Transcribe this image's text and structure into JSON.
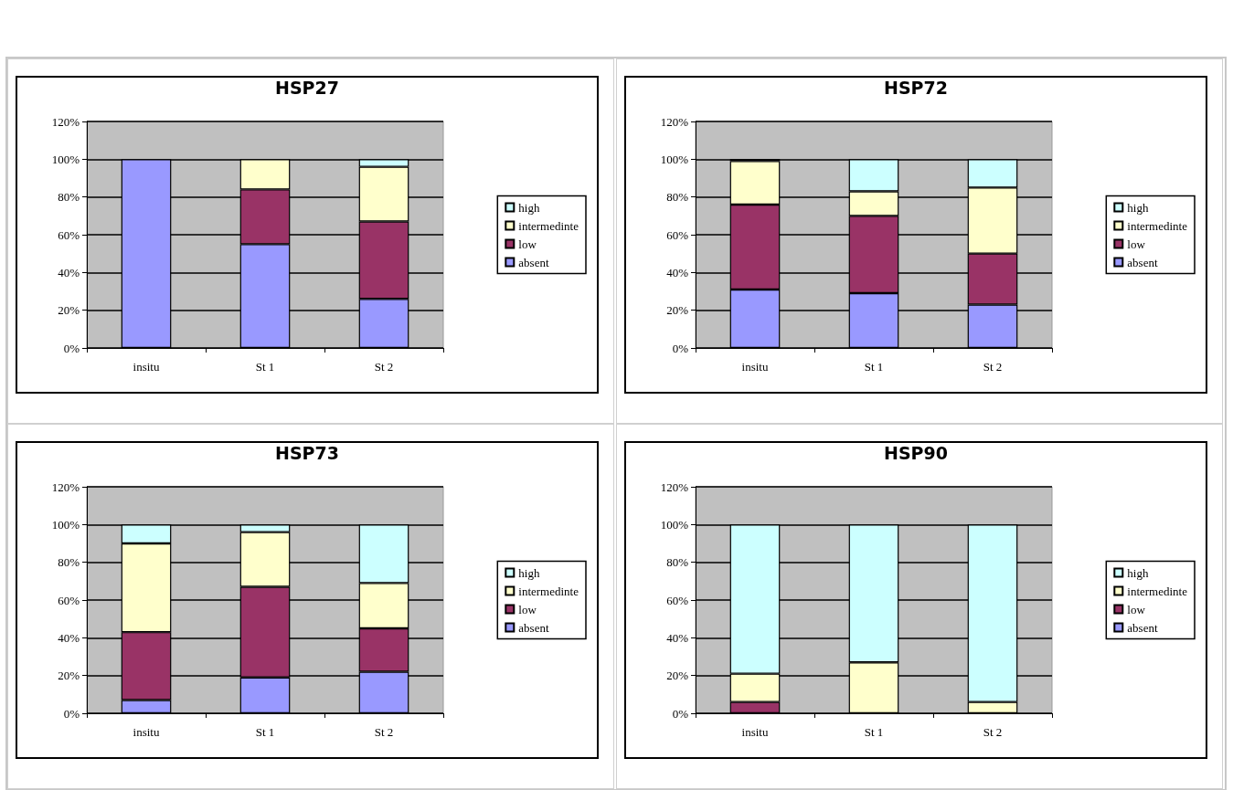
{
  "chart_data": [
    {
      "type": "bar",
      "title": "HSP27",
      "categories": [
        "insitu",
        "St 1",
        "St 2"
      ],
      "stacked": true,
      "legend": "right",
      "grid": "y",
      "ylim": [
        0,
        120
      ],
      "yticks": [
        {
          "value": 0,
          "label": "0%"
        },
        {
          "value": 20,
          "label": "20%"
        },
        {
          "value": 40,
          "label": "40%"
        },
        {
          "value": 60,
          "label": "60%"
        },
        {
          "value": 80,
          "label": "80%"
        },
        {
          "value": 100,
          "label": "100%"
        },
        {
          "value": 120,
          "label": "120%"
        }
      ],
      "series": [
        {
          "name": "absent",
          "color": "#9999ff",
          "values": [
            100,
            55,
            26
          ]
        },
        {
          "name": "low",
          "color": "#993366",
          "values": [
            0,
            29,
            41
          ]
        },
        {
          "name": "intermedinte",
          "color": "#ffffcc",
          "values": [
            0,
            16,
            29
          ]
        },
        {
          "name": "high",
          "color": "#ccffff",
          "values": [
            0,
            0,
            4
          ]
        }
      ]
    },
    {
      "type": "bar",
      "title": "HSP72",
      "categories": [
        "insitu",
        "St 1",
        "St 2"
      ],
      "stacked": true,
      "legend": "right",
      "grid": "y",
      "ylim": [
        0,
        120
      ],
      "yticks": [
        {
          "value": 0,
          "label": "0%"
        },
        {
          "value": 20,
          "label": "20%"
        },
        {
          "value": 40,
          "label": "40%"
        },
        {
          "value": 60,
          "label": "60%"
        },
        {
          "value": 80,
          "label": "80%"
        },
        {
          "value": 100,
          "label": "100%"
        },
        {
          "value": 120,
          "label": "120%"
        }
      ],
      "series": [
        {
          "name": "absent",
          "color": "#9999ff",
          "values": [
            31,
            29,
            23
          ]
        },
        {
          "name": "low",
          "color": "#993366",
          "values": [
            45,
            41,
            27
          ]
        },
        {
          "name": "intermedinte",
          "color": "#ffffcc",
          "values": [
            23,
            13,
            35
          ]
        },
        {
          "name": "high",
          "color": "#ccffff",
          "values": [
            1,
            17,
            15
          ]
        }
      ]
    },
    {
      "type": "bar",
      "title": "HSP73",
      "categories": [
        "insitu",
        "St 1",
        "St 2"
      ],
      "stacked": true,
      "legend": "right",
      "grid": "y",
      "ylim": [
        0,
        120
      ],
      "yticks": [
        {
          "value": 0,
          "label": "0%"
        },
        {
          "value": 20,
          "label": "20%"
        },
        {
          "value": 40,
          "label": "40%"
        },
        {
          "value": 60,
          "label": "60%"
        },
        {
          "value": 80,
          "label": "80%"
        },
        {
          "value": 100,
          "label": "100%"
        },
        {
          "value": 120,
          "label": "120%"
        }
      ],
      "series": [
        {
          "name": "absent",
          "color": "#9999ff",
          "values": [
            7,
            19,
            22
          ]
        },
        {
          "name": "low",
          "color": "#993366",
          "values": [
            36,
            48,
            23
          ]
        },
        {
          "name": "intermedinte",
          "color": "#ffffcc",
          "values": [
            47,
            29,
            24
          ]
        },
        {
          "name": "high",
          "color": "#ccffff",
          "values": [
            10,
            4,
            31
          ]
        }
      ]
    },
    {
      "type": "bar",
      "title": "HSP90",
      "categories": [
        "insitu",
        "St 1",
        "St 2"
      ],
      "stacked": true,
      "legend": "right",
      "grid": "y",
      "ylim": [
        0,
        120
      ],
      "yticks": [
        {
          "value": 0,
          "label": "0%"
        },
        {
          "value": 20,
          "label": "20%"
        },
        {
          "value": 40,
          "label": "40%"
        },
        {
          "value": 60,
          "label": "60%"
        },
        {
          "value": 80,
          "label": "80%"
        },
        {
          "value": 100,
          "label": "100%"
        },
        {
          "value": 120,
          "label": "120%"
        }
      ],
      "series": [
        {
          "name": "absent",
          "color": "#9999ff",
          "values": [
            0,
            0,
            0
          ]
        },
        {
          "name": "low",
          "color": "#993366",
          "values": [
            6,
            0,
            0
          ]
        },
        {
          "name": "intermedinte",
          "color": "#ffffcc",
          "values": [
            15,
            27,
            6
          ]
        },
        {
          "name": "high",
          "color": "#ccffff",
          "values": [
            79,
            73,
            94
          ]
        }
      ]
    }
  ]
}
